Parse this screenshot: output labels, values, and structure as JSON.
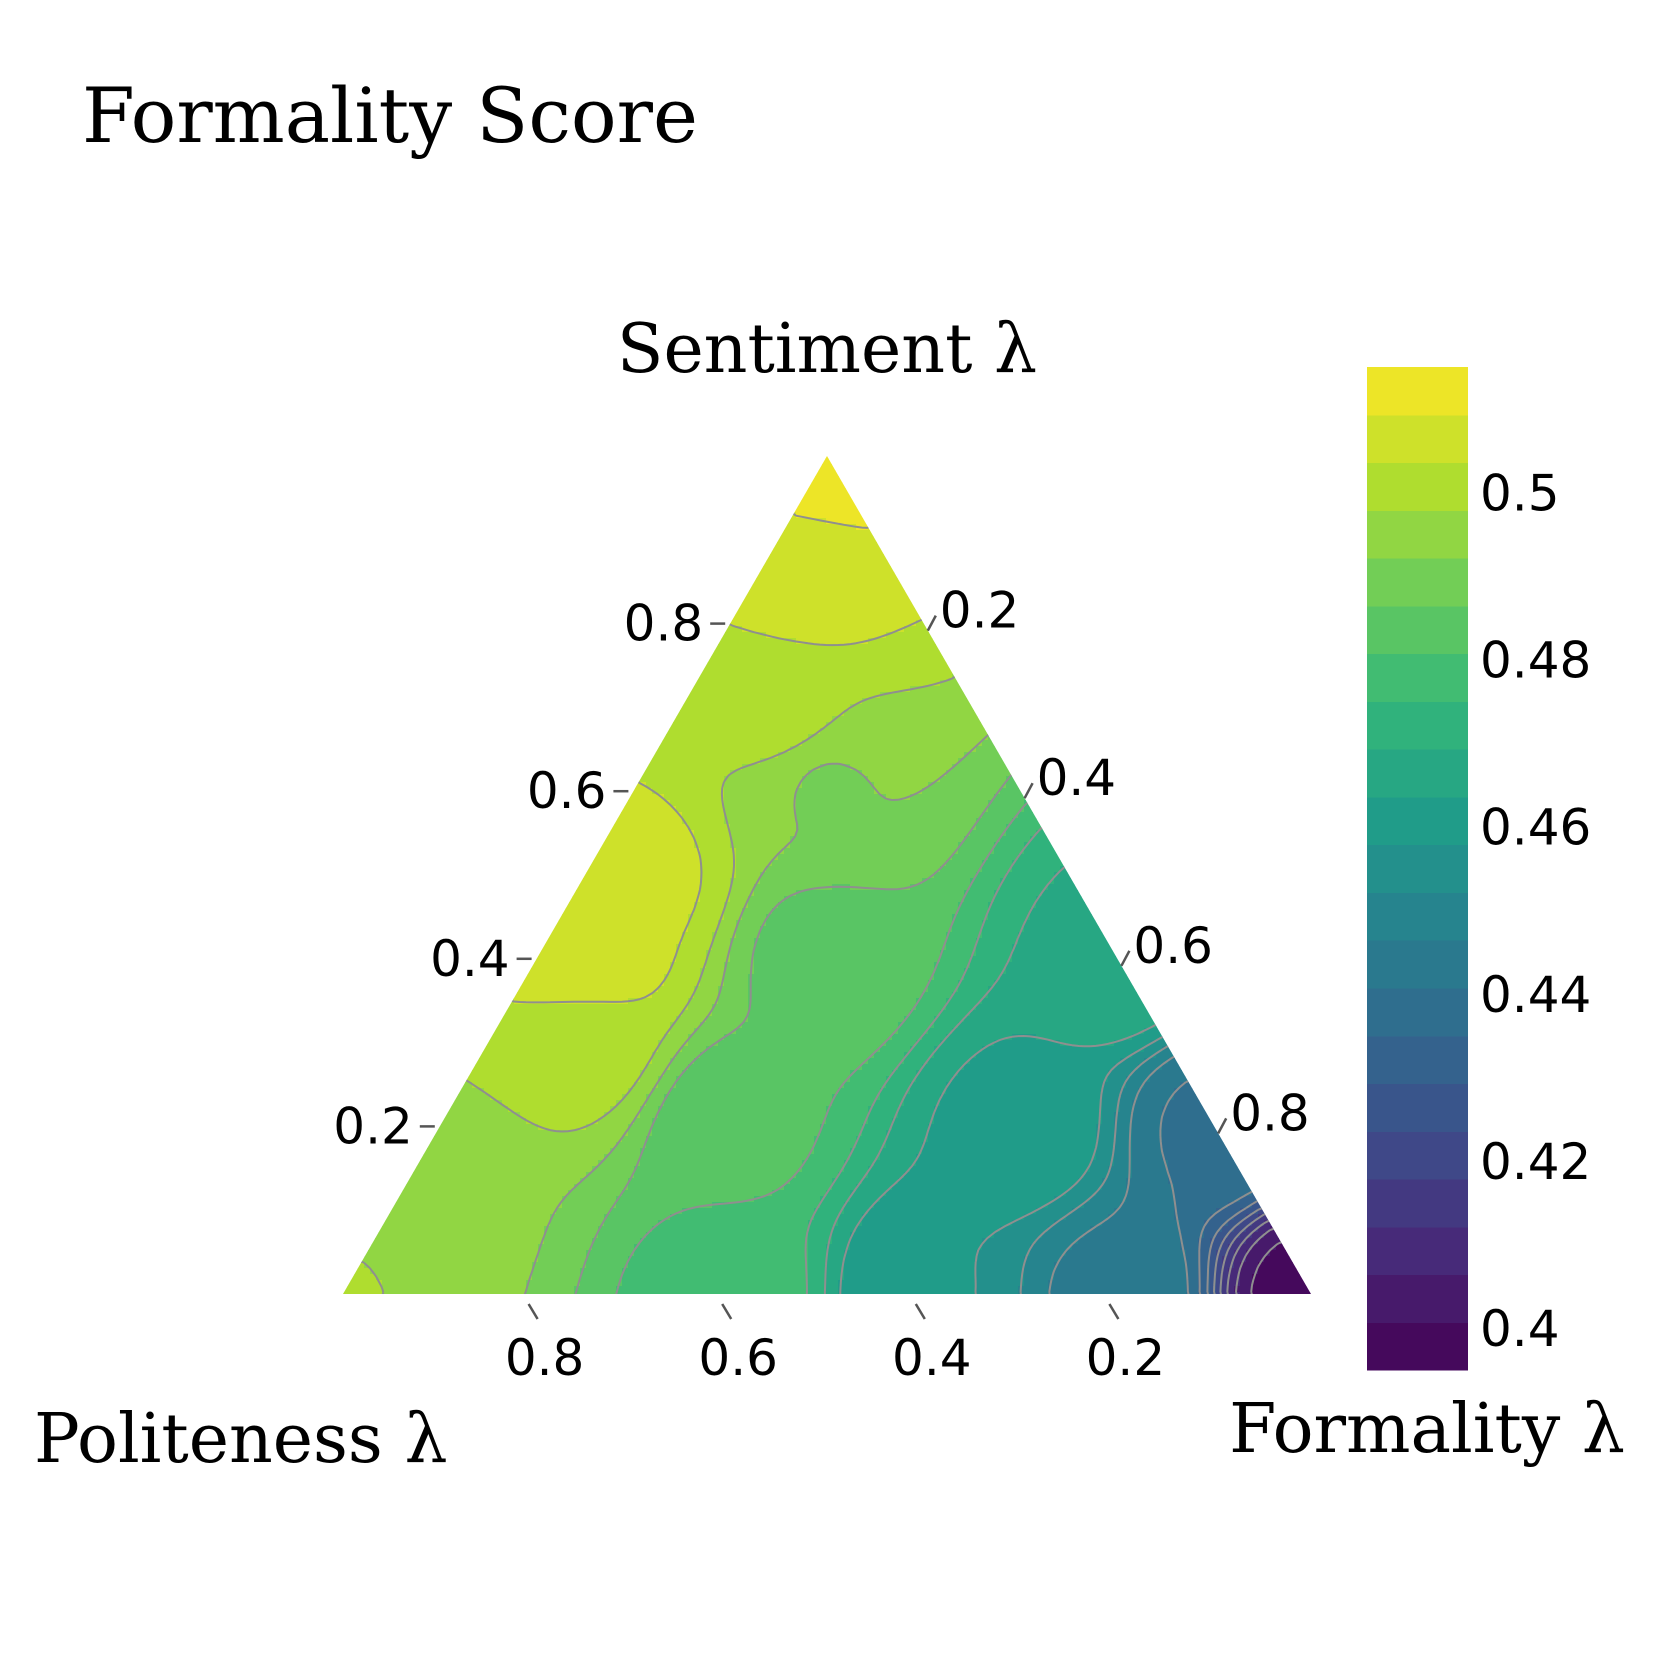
{
  "chart_data": {
    "type": "ternary-contour",
    "title": "Formality Score",
    "axes": {
      "top": {
        "label": "Sentiment λ",
        "ticks": [
          0.2,
          0.4,
          0.6,
          0.8
        ],
        "tick_labels": [
          "0.2",
          "0.4",
          "0.6",
          "0.8"
        ]
      },
      "left": {
        "label": "Politeness λ",
        "ticks": [
          0.2,
          0.4,
          0.6,
          0.8
        ],
        "tick_labels": [
          "0.2",
          "0.4",
          "0.6",
          "0.8"
        ]
      },
      "right": {
        "label": "Formality λ",
        "ticks": [
          0.2,
          0.4,
          0.6,
          0.8
        ],
        "tick_labels": [
          "0.2",
          "0.4",
          "0.6",
          "0.8"
        ]
      }
    },
    "colorbar": {
      "colormap": "viridis",
      "range": [
        0.395,
        0.515
      ],
      "levels": 21,
      "ticks": [
        0.4,
        0.42,
        0.44,
        0.46,
        0.48,
        0.5
      ],
      "tick_labels": [
        "0.4",
        "0.42",
        "0.44",
        "0.46",
        "0.48",
        "0.5"
      ]
    },
    "samples": [
      {
        "sentiment": 1.0,
        "politeness": 0.0,
        "formality": 0.0,
        "score": 0.513
      },
      {
        "sentiment": 0.85,
        "politeness": 0.1,
        "formality": 0.05,
        "score": 0.506
      },
      {
        "sentiment": 0.7,
        "politeness": 0.2,
        "formality": 0.1,
        "score": 0.5
      },
      {
        "sentiment": 0.5,
        "politeness": 0.45,
        "formality": 0.05,
        "score": 0.505
      },
      {
        "sentiment": 0.4,
        "politeness": 0.55,
        "formality": 0.05,
        "score": 0.508
      },
      {
        "sentiment": 0.3,
        "politeness": 0.6,
        "formality": 0.1,
        "score": 0.5
      },
      {
        "sentiment": 0.1,
        "politeness": 0.85,
        "formality": 0.05,
        "score": 0.493
      },
      {
        "sentiment": 0.0,
        "politeness": 1.0,
        "formality": 0.0,
        "score": 0.498
      },
      {
        "sentiment": 0.6,
        "politeness": 0.2,
        "formality": 0.2,
        "score": 0.492
      },
      {
        "sentiment": 0.4,
        "politeness": 0.3,
        "formality": 0.3,
        "score": 0.484
      },
      {
        "sentiment": 0.2,
        "politeness": 0.5,
        "formality": 0.3,
        "score": 0.482
      },
      {
        "sentiment": 0.0,
        "politeness": 0.6,
        "formality": 0.4,
        "score": 0.478
      },
      {
        "sentiment": 0.4,
        "politeness": 0.0,
        "formality": 0.6,
        "score": 0.468
      },
      {
        "sentiment": 0.2,
        "politeness": 0.2,
        "formality": 0.6,
        "score": 0.462
      },
      {
        "sentiment": 0.0,
        "politeness": 0.4,
        "formality": 0.6,
        "score": 0.458
      },
      {
        "sentiment": 0.2,
        "politeness": 0.0,
        "formality": 0.8,
        "score": 0.44
      },
      {
        "sentiment": 0.0,
        "politeness": 0.2,
        "formality": 0.8,
        "score": 0.445
      },
      {
        "sentiment": 0.0,
        "politeness": 0.0,
        "formality": 1.0,
        "score": 0.398
      }
    ],
    "grid": false,
    "legend": "colorbar-right"
  }
}
